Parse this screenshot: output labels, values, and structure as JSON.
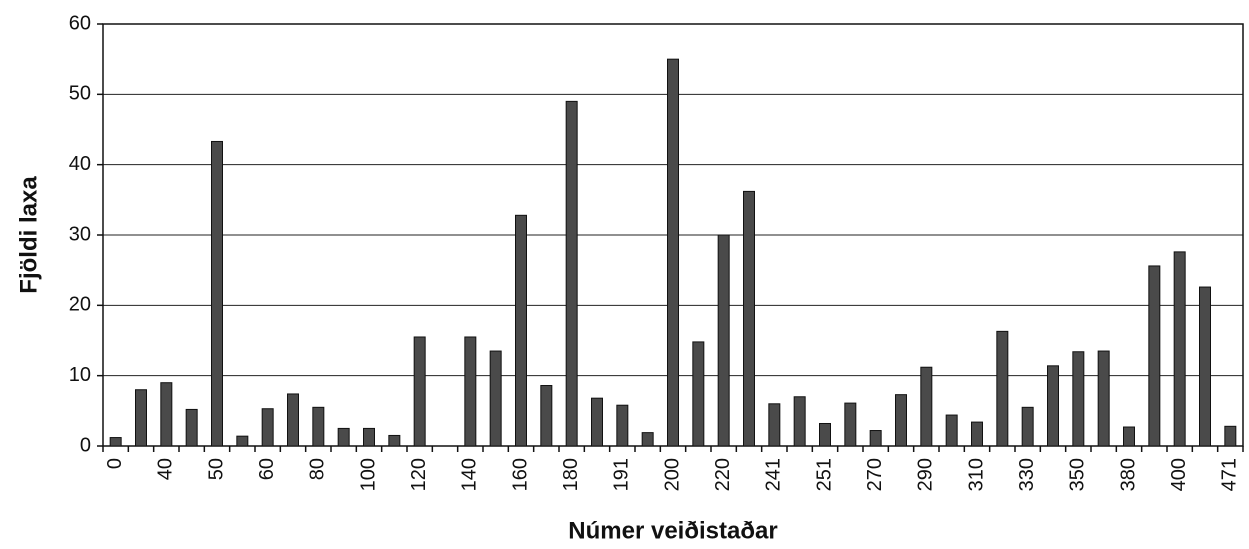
{
  "chart_data": {
    "type": "bar",
    "x_label": "Númer veiðistaðar",
    "y_label": "Fjöldi laxa",
    "categories": [
      "0",
      null,
      "40",
      null,
      "50",
      null,
      "60",
      null,
      "80",
      null,
      "100",
      null,
      "120",
      null,
      "140",
      null,
      "160",
      null,
      "180",
      null,
      "191",
      null,
      "200",
      null,
      "220",
      null,
      "241",
      null,
      "251",
      null,
      "270",
      null,
      "290",
      null,
      "310",
      null,
      "330",
      null,
      "350",
      null,
      "380",
      null,
      "400",
      null,
      "471"
    ],
    "values": [
      1.2,
      8,
      9,
      5.2,
      43.3,
      1.4,
      5.3,
      7.4,
      5.5,
      2.5,
      2.5,
      1.5,
      15.5,
      0,
      15.5,
      13.5,
      32.8,
      8.6,
      49,
      6.8,
      5.8,
      1.9,
      55,
      14.8,
      30,
      36.2,
      6,
      7,
      3.2,
      6.1,
      2.2,
      7.3,
      11.2,
      4.4,
      3.4,
      16.3,
      5.5,
      11.4,
      13.4,
      13.5,
      2.7,
      25.6,
      27.6,
      22.6,
      2.8
    ],
    "color": "#4a4a4a",
    "ylim": [
      0,
      60
    ],
    "yticks": [
      0,
      10,
      20,
      30,
      40,
      50,
      60
    ],
    "grid": true
  }
}
